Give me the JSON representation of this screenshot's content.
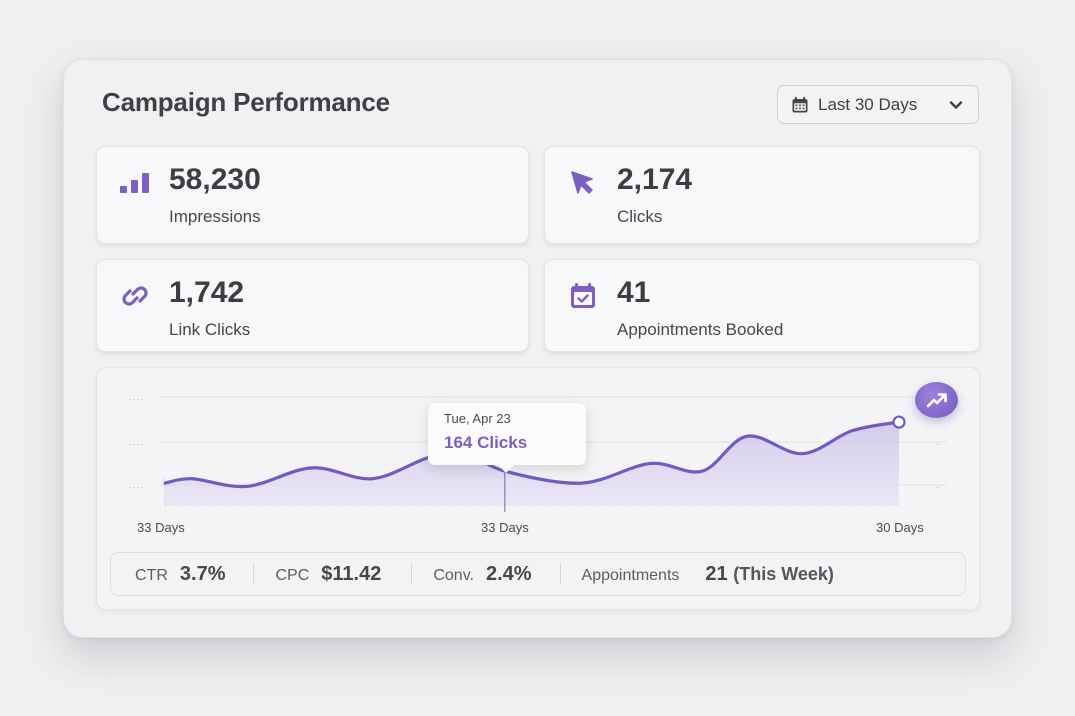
{
  "header": {
    "title": "Campaign Performance",
    "date_range": {
      "label": "Last 30 Days",
      "icon": "calendar-icon",
      "dropdown_icon": "chevron-down-icon"
    }
  },
  "kpis": [
    {
      "value": "58,230",
      "label": "Impressions",
      "icon": "bar-chart-icon"
    },
    {
      "value": "2,174",
      "label": "Clicks",
      "icon": "cursor-arrow-icon"
    },
    {
      "value": "1,742",
      "label": "Link Clicks",
      "icon": "link-icon"
    },
    {
      "value": "41",
      "label": "Appointments Booked",
      "icon": "calendar-check-icon"
    }
  ],
  "colors": {
    "accent": "#7b5fc2",
    "line": "#7559c0",
    "area_fill": "#d8d1ee",
    "text": "#3d3d42",
    "panel_bg": "#f1f1f3"
  },
  "chart_data": {
    "type": "area",
    "title": "",
    "xlabel": "",
    "ylabel": "",
    "x_tick_labels": [
      "33 Days",
      "33 Days",
      "30 Days"
    ],
    "y_tick_labels": [
      "....",
      "....",
      "...."
    ],
    "ylim": [
      0,
      100
    ],
    "grid": true,
    "series": [
      {
        "name": "Clicks",
        "values": [
          21,
          25,
          18,
          35,
          25,
          44,
          50,
          32,
          21,
          39,
          32,
          64,
          48,
          69,
          77
        ]
      }
    ],
    "x": [
      0,
      0.037,
      0.112,
      0.2,
      0.282,
      0.357,
      0.405,
      0.463,
      0.568,
      0.661,
      0.732,
      0.793,
      0.868,
      0.936,
      1.0
    ],
    "highlight_index": 7,
    "end_marker": true,
    "tooltip": {
      "date": "Tue, Apr 23",
      "value": "164 Clicks"
    }
  },
  "chart": {
    "trend_button_icon": "trending-up-icon"
  },
  "summary": [
    {
      "key": "CTR",
      "value": "3.7%"
    },
    {
      "key": "CPC",
      "value": "$11.42"
    },
    {
      "key": "Conv.",
      "value": "2.4%"
    },
    {
      "key": "Appointments",
      "value": "21",
      "note": "(This Week)"
    }
  ]
}
